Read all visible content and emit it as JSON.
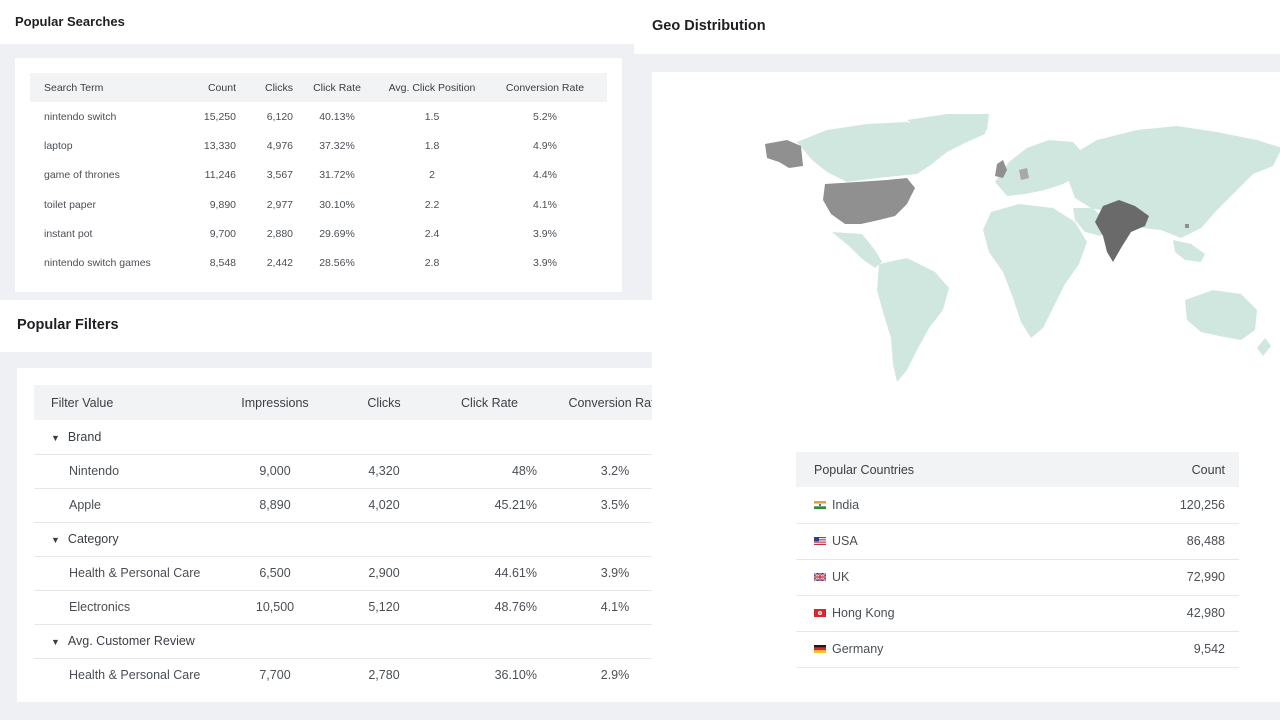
{
  "popular_searches": {
    "title": "Popular Searches",
    "columns": [
      "Search Term",
      "Count",
      "Clicks",
      "Click Rate",
      "Avg. Click Position",
      "Conversion Rate"
    ],
    "rows": [
      [
        "nintendo switch",
        "15,250",
        "6,120",
        "40.13%",
        "1.5",
        "5.2%"
      ],
      [
        "laptop",
        "13,330",
        "4,976",
        "37.32%",
        "1.8",
        "4.9%"
      ],
      [
        "game of thrones",
        "11,246",
        "3,567",
        "31.72%",
        "2",
        "4.4%"
      ],
      [
        "toilet paper",
        "9,890",
        "2,977",
        "30.10%",
        "2.2",
        "4.1%"
      ],
      [
        "instant pot",
        "9,700",
        "2,880",
        "29.69%",
        "2.4",
        "3.9%"
      ],
      [
        "nintendo switch games",
        "8,548",
        "2,442",
        "28.56%",
        "2.8",
        "3.9%"
      ]
    ]
  },
  "popular_filters": {
    "title": "Popular Filters",
    "columns": [
      "Filter Value",
      "Impressions",
      "Clicks",
      "Click Rate",
      "Conversion Rate"
    ],
    "groups": [
      {
        "label": "Brand",
        "rows": [
          [
            "Nintendo",
            "9,000",
            "4,320",
            "48%",
            "3.2%"
          ],
          [
            "Apple",
            "8,890",
            "4,020",
            "45.21%",
            "3.5%"
          ]
        ]
      },
      {
        "label": "Category",
        "rows": [
          [
            "Health & Personal Care",
            "6,500",
            "2,900",
            "44.61%",
            "3.9%"
          ],
          [
            "Electronics",
            "10,500",
            "5,120",
            "48.76%",
            "4.1%"
          ]
        ]
      },
      {
        "label": "Avg. Customer Review",
        "rows": [
          [
            "Health & Personal Care",
            "7,700",
            "2,780",
            "36.10%",
            "2.9%"
          ]
        ]
      }
    ],
    "caret_icon": "caret-down-icon"
  },
  "geo_distribution": {
    "title": "Geo Distribution",
    "map": {
      "land_color": "#cfe7df",
      "highlight_color": "#909090",
      "top_color": "#6a6a6a"
    },
    "countries_table": {
      "columns": [
        "Popular Countries",
        "Count"
      ],
      "rows": [
        {
          "country": "India",
          "count": "120,256",
          "flag": "india-flag-icon"
        },
        {
          "country": "USA",
          "count": "86,488",
          "flag": "usa-flag-icon"
        },
        {
          "country": "UK",
          "count": "72,990",
          "flag": "uk-flag-icon"
        },
        {
          "country": "Hong Kong",
          "count": "42,980",
          "flag": "hong-kong-flag-icon"
        },
        {
          "country": "Germany",
          "count": "9,542",
          "flag": "germany-flag-icon"
        }
      ]
    }
  }
}
